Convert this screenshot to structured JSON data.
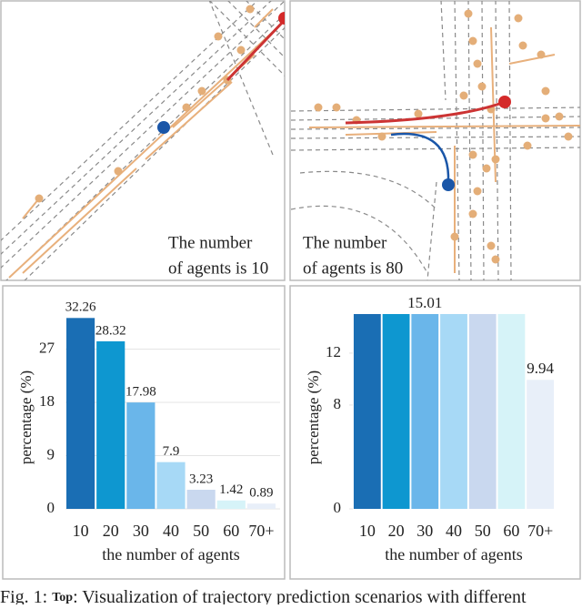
{
  "scenes": [
    {
      "label_lines": [
        "The number",
        "of agents is 10"
      ]
    },
    {
      "label_lines": [
        "The number",
        "of agents is 80"
      ]
    }
  ],
  "chart_data": [
    {
      "type": "bar",
      "categories": [
        "10",
        "20",
        "30",
        "40",
        "50",
        "60",
        "70+"
      ],
      "values": [
        32.26,
        28.32,
        17.98,
        7.9,
        3.23,
        1.42,
        0.89
      ],
      "colors": [
        "#1a6eb4",
        "#0e97d0",
        "#6ab6ea",
        "#a7d9f6",
        "#c9d8ef",
        "#d6f3f8",
        "#e8eff9"
      ],
      "ylim": [
        0,
        34
      ],
      "yticks": [
        0,
        9,
        18,
        27
      ],
      "grid": true,
      "xlabel": "the number of agents",
      "ylabel": "percentage (%)"
    },
    {
      "type": "bar",
      "categories": [
        "10",
        "20",
        "30",
        "40",
        "50",
        "60",
        "70+"
      ],
      "values": [
        15.01,
        15.01,
        15.01,
        15.01,
        15.01,
        15.01,
        9.94
      ],
      "value_labels": [
        null,
        null,
        "15.01",
        null,
        null,
        null,
        "9.94"
      ],
      "colors": [
        "#1a6eb4",
        "#0e97d0",
        "#6ab6ea",
        "#a7d9f6",
        "#c9d8ef",
        "#d6f3f8",
        "#e8eff9"
      ],
      "ylim": [
        0,
        15.5
      ],
      "yticks": [
        0,
        8,
        12
      ],
      "grid": false,
      "xlabel": "the number of agents",
      "ylabel": "percentage (%)"
    }
  ],
  "caption": {
    "prefix": "Fig. 1:",
    "lead": "Top",
    "text": ": Visualization of trajectory prediction scenarios with different"
  }
}
